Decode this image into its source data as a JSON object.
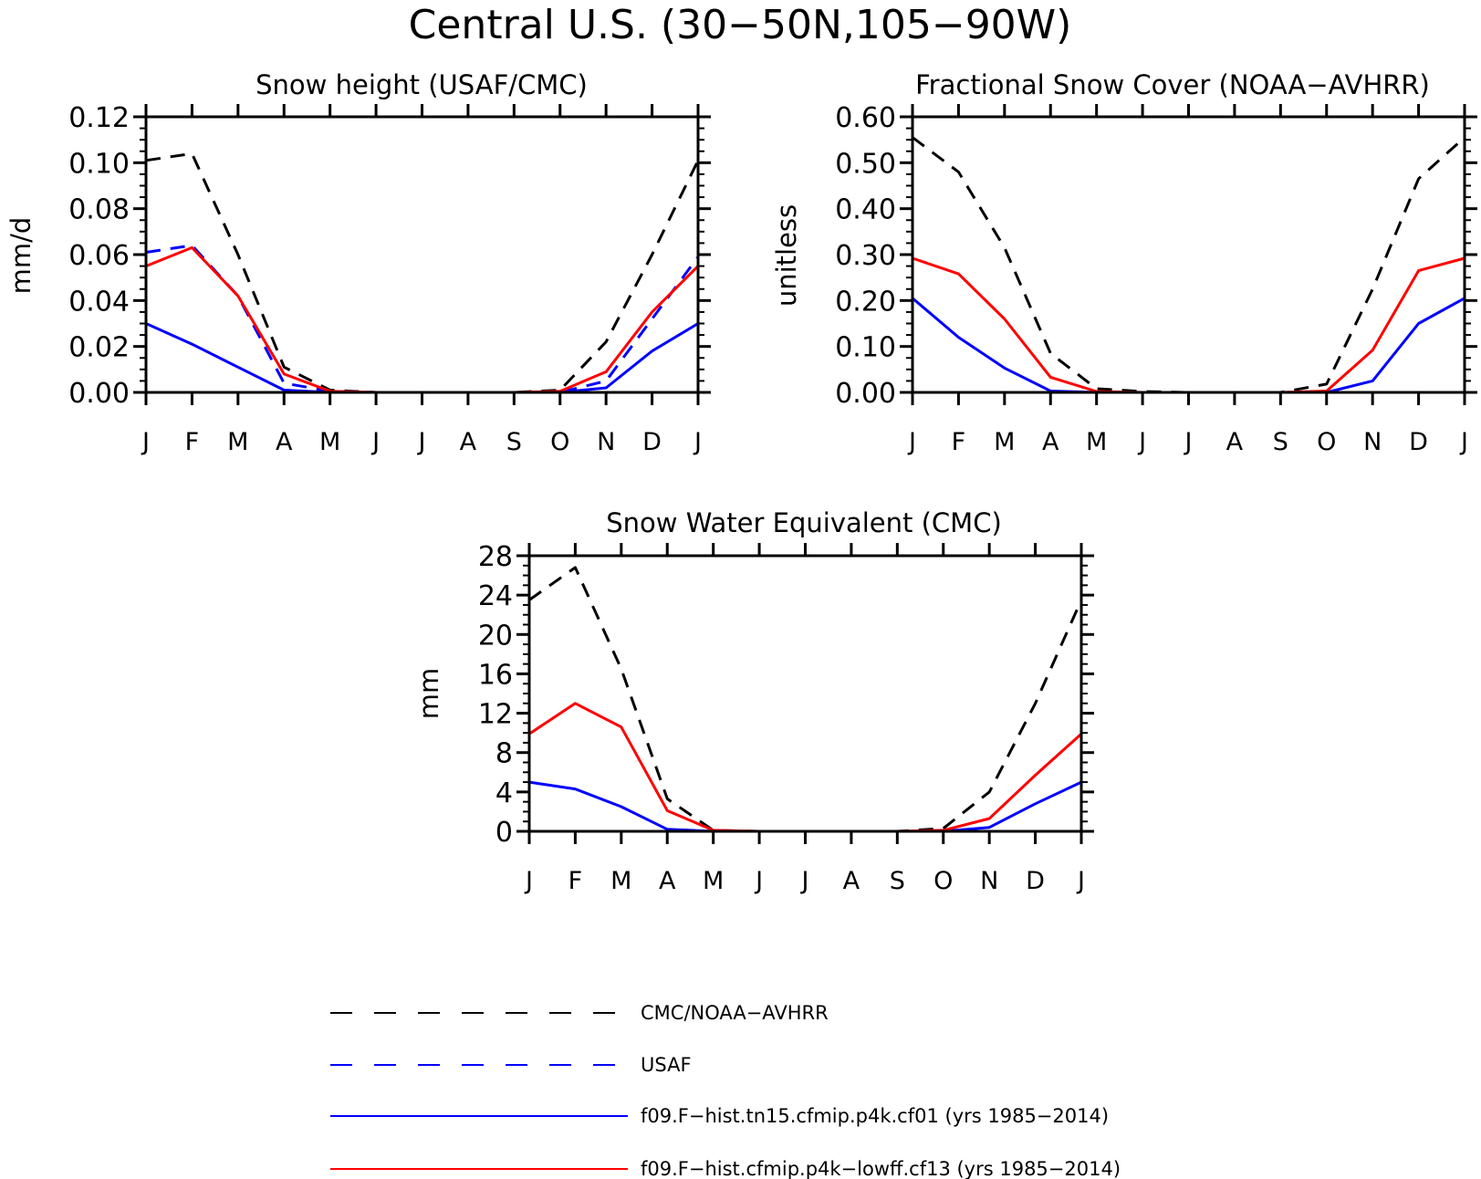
{
  "title": "Central U.S. (30−50N,105−90W)",
  "months": [
    "J",
    "F",
    "M",
    "A",
    "M",
    "J",
    "J",
    "A",
    "S",
    "O",
    "N",
    "D",
    "J"
  ],
  "series_styles": [
    {
      "key": "obs",
      "color": "#000000",
      "dash": true
    },
    {
      "key": "usaf",
      "color": "#0000ff",
      "dash": true
    },
    {
      "key": "cf01",
      "color": "#0000ff",
      "dash": false
    },
    {
      "key": "cf13",
      "color": "#ff0000",
      "dash": false
    }
  ],
  "legend": [
    {
      "key": "obs",
      "label": "CMC/NOAA−AVHRR"
    },
    {
      "key": "usaf",
      "label": "USAF"
    },
    {
      "key": "cf01",
      "label": "f09.F−hist.tn15.cfmip.p4k.cf01 (yrs 1985−2014)"
    },
    {
      "key": "cf13",
      "label": "f09.F−hist.cfmip.p4k−lowff.cf13 (yrs 1985−2014)"
    }
  ],
  "chart_data": [
    {
      "type": "line",
      "title": "Snow height (USAF/CMC)",
      "ylabel": "mm/d",
      "ylim": [
        0,
        0.12
      ],
      "yticks": [
        "0.00",
        "0.02",
        "0.04",
        "0.06",
        "0.08",
        "0.10",
        "0.12"
      ],
      "x": [
        "J",
        "F",
        "M",
        "A",
        "M",
        "J",
        "J",
        "A",
        "S",
        "O",
        "N",
        "D",
        "J"
      ],
      "series": [
        {
          "key": "obs",
          "values": [
            0.101,
            0.104,
            0.06,
            0.011,
            0.001,
            0,
            0,
            0,
            0,
            0.001,
            0.022,
            0.06,
            0.101
          ]
        },
        {
          "key": "usaf",
          "values": [
            0.061,
            0.064,
            0.042,
            0.004,
            0.0005,
            0,
            0,
            0,
            0,
            0,
            0.005,
            0.032,
            0.059
          ]
        },
        {
          "key": "cf01",
          "values": [
            0.03,
            0.021,
            0.011,
            0.001,
            0,
            0,
            0,
            0,
            0,
            0,
            0.002,
            0.018,
            0.03
          ]
        },
        {
          "key": "cf13",
          "values": [
            0.055,
            0.063,
            0.042,
            0.008,
            0.0005,
            0,
            0,
            0,
            0,
            0.0005,
            0.009,
            0.035,
            0.055
          ]
        }
      ]
    },
    {
      "type": "line",
      "title": "Fractional Snow Cover (NOAA−AVHRR)",
      "ylabel": "unitless",
      "ylim": [
        0,
        0.6
      ],
      "yticks": [
        "0.00",
        "0.10",
        "0.20",
        "0.30",
        "0.40",
        "0.50",
        "0.60"
      ],
      "x": [
        "J",
        "F",
        "M",
        "A",
        "M",
        "J",
        "J",
        "A",
        "S",
        "O",
        "N",
        "D",
        "J"
      ],
      "series": [
        {
          "key": "obs",
          "values": [
            0.555,
            0.48,
            0.315,
            0.085,
            0.008,
            0.002,
            0,
            0,
            0,
            0.018,
            0.225,
            0.465,
            0.555
          ]
        },
        {
          "key": "cf01",
          "values": [
            0.205,
            0.12,
            0.053,
            0.003,
            0,
            0,
            0,
            0,
            0,
            0,
            0.025,
            0.15,
            0.205
          ]
        },
        {
          "key": "cf13",
          "values": [
            0.292,
            0.258,
            0.16,
            0.033,
            0.002,
            0,
            0,
            0,
            0,
            0.003,
            0.092,
            0.265,
            0.292
          ]
        }
      ]
    },
    {
      "type": "line",
      "title": "Snow Water Equivalent (CMC)",
      "ylabel": "mm",
      "ylim": [
        0,
        28
      ],
      "yticks": [
        "0",
        "4",
        "8",
        "12",
        "16",
        "20",
        "24",
        "28"
      ],
      "x": [
        "J",
        "F",
        "M",
        "A",
        "M",
        "J",
        "J",
        "A",
        "S",
        "O",
        "N",
        "D",
        "J"
      ],
      "series": [
        {
          "key": "obs",
          "values": [
            23.5,
            26.8,
            16.5,
            3.3,
            0.1,
            0,
            0,
            0,
            0,
            0.3,
            4.0,
            13.0,
            23.5
          ]
        },
        {
          "key": "cf01",
          "values": [
            5.0,
            4.3,
            2.5,
            0.2,
            0,
            0,
            0,
            0,
            0,
            0,
            0.4,
            2.8,
            5.0
          ]
        },
        {
          "key": "cf13",
          "values": [
            9.9,
            13.0,
            10.6,
            2.1,
            0.1,
            0,
            0,
            0,
            0,
            0.1,
            1.3,
            5.7,
            9.9
          ]
        }
      ]
    }
  ]
}
